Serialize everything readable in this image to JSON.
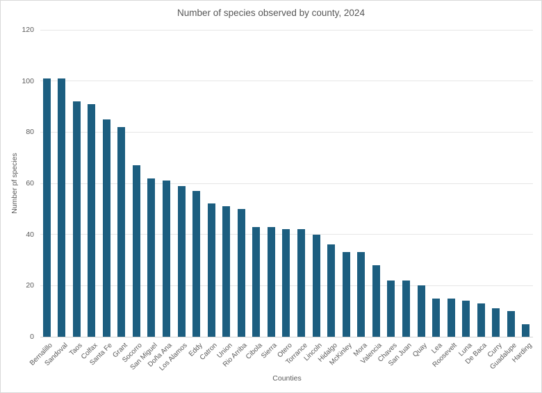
{
  "chart_data": {
    "type": "bar",
    "title": "Number of species observed by county, 2024",
    "xlabel": "Counties",
    "ylabel": "Number pf species",
    "categories": [
      "Bernalillo",
      "Sandoval",
      "Taos",
      "Colfax",
      "Santa Fe",
      "Grant",
      "Socorro",
      "San Miguel",
      "Doña Ana",
      "Los Alamos",
      "Eddy",
      "Catron",
      "Union",
      "Rio Arriba",
      "Cibola",
      "Sierra",
      "Otero",
      "Torrance",
      "Lincoln",
      "Hidalgo",
      "McKinley",
      "Mora",
      "Valencia",
      "Chaves",
      "San Juan",
      "Quay",
      "Lea",
      "Roosevelt",
      "Luna",
      "De Baca",
      "Curry",
      "Guadalupe",
      "Harding"
    ],
    "values": [
      101,
      101,
      92,
      91,
      85,
      82,
      67,
      62,
      61,
      59,
      57,
      52,
      51,
      50,
      43,
      43,
      42,
      42,
      40,
      36,
      33,
      33,
      28,
      22,
      22,
      20,
      15,
      15,
      14,
      13,
      11,
      10,
      5
    ],
    "ylim": [
      0,
      120
    ],
    "yticks": [
      0,
      20,
      40,
      60,
      80,
      100,
      120
    ],
    "grid": true,
    "legend": "none",
    "bar_color": "#1c5e80",
    "gridline_color": "#e6e6e6",
    "axis_line_color": "#d2d2d2",
    "text_color": "#595959",
    "title_color": "#565656"
  }
}
